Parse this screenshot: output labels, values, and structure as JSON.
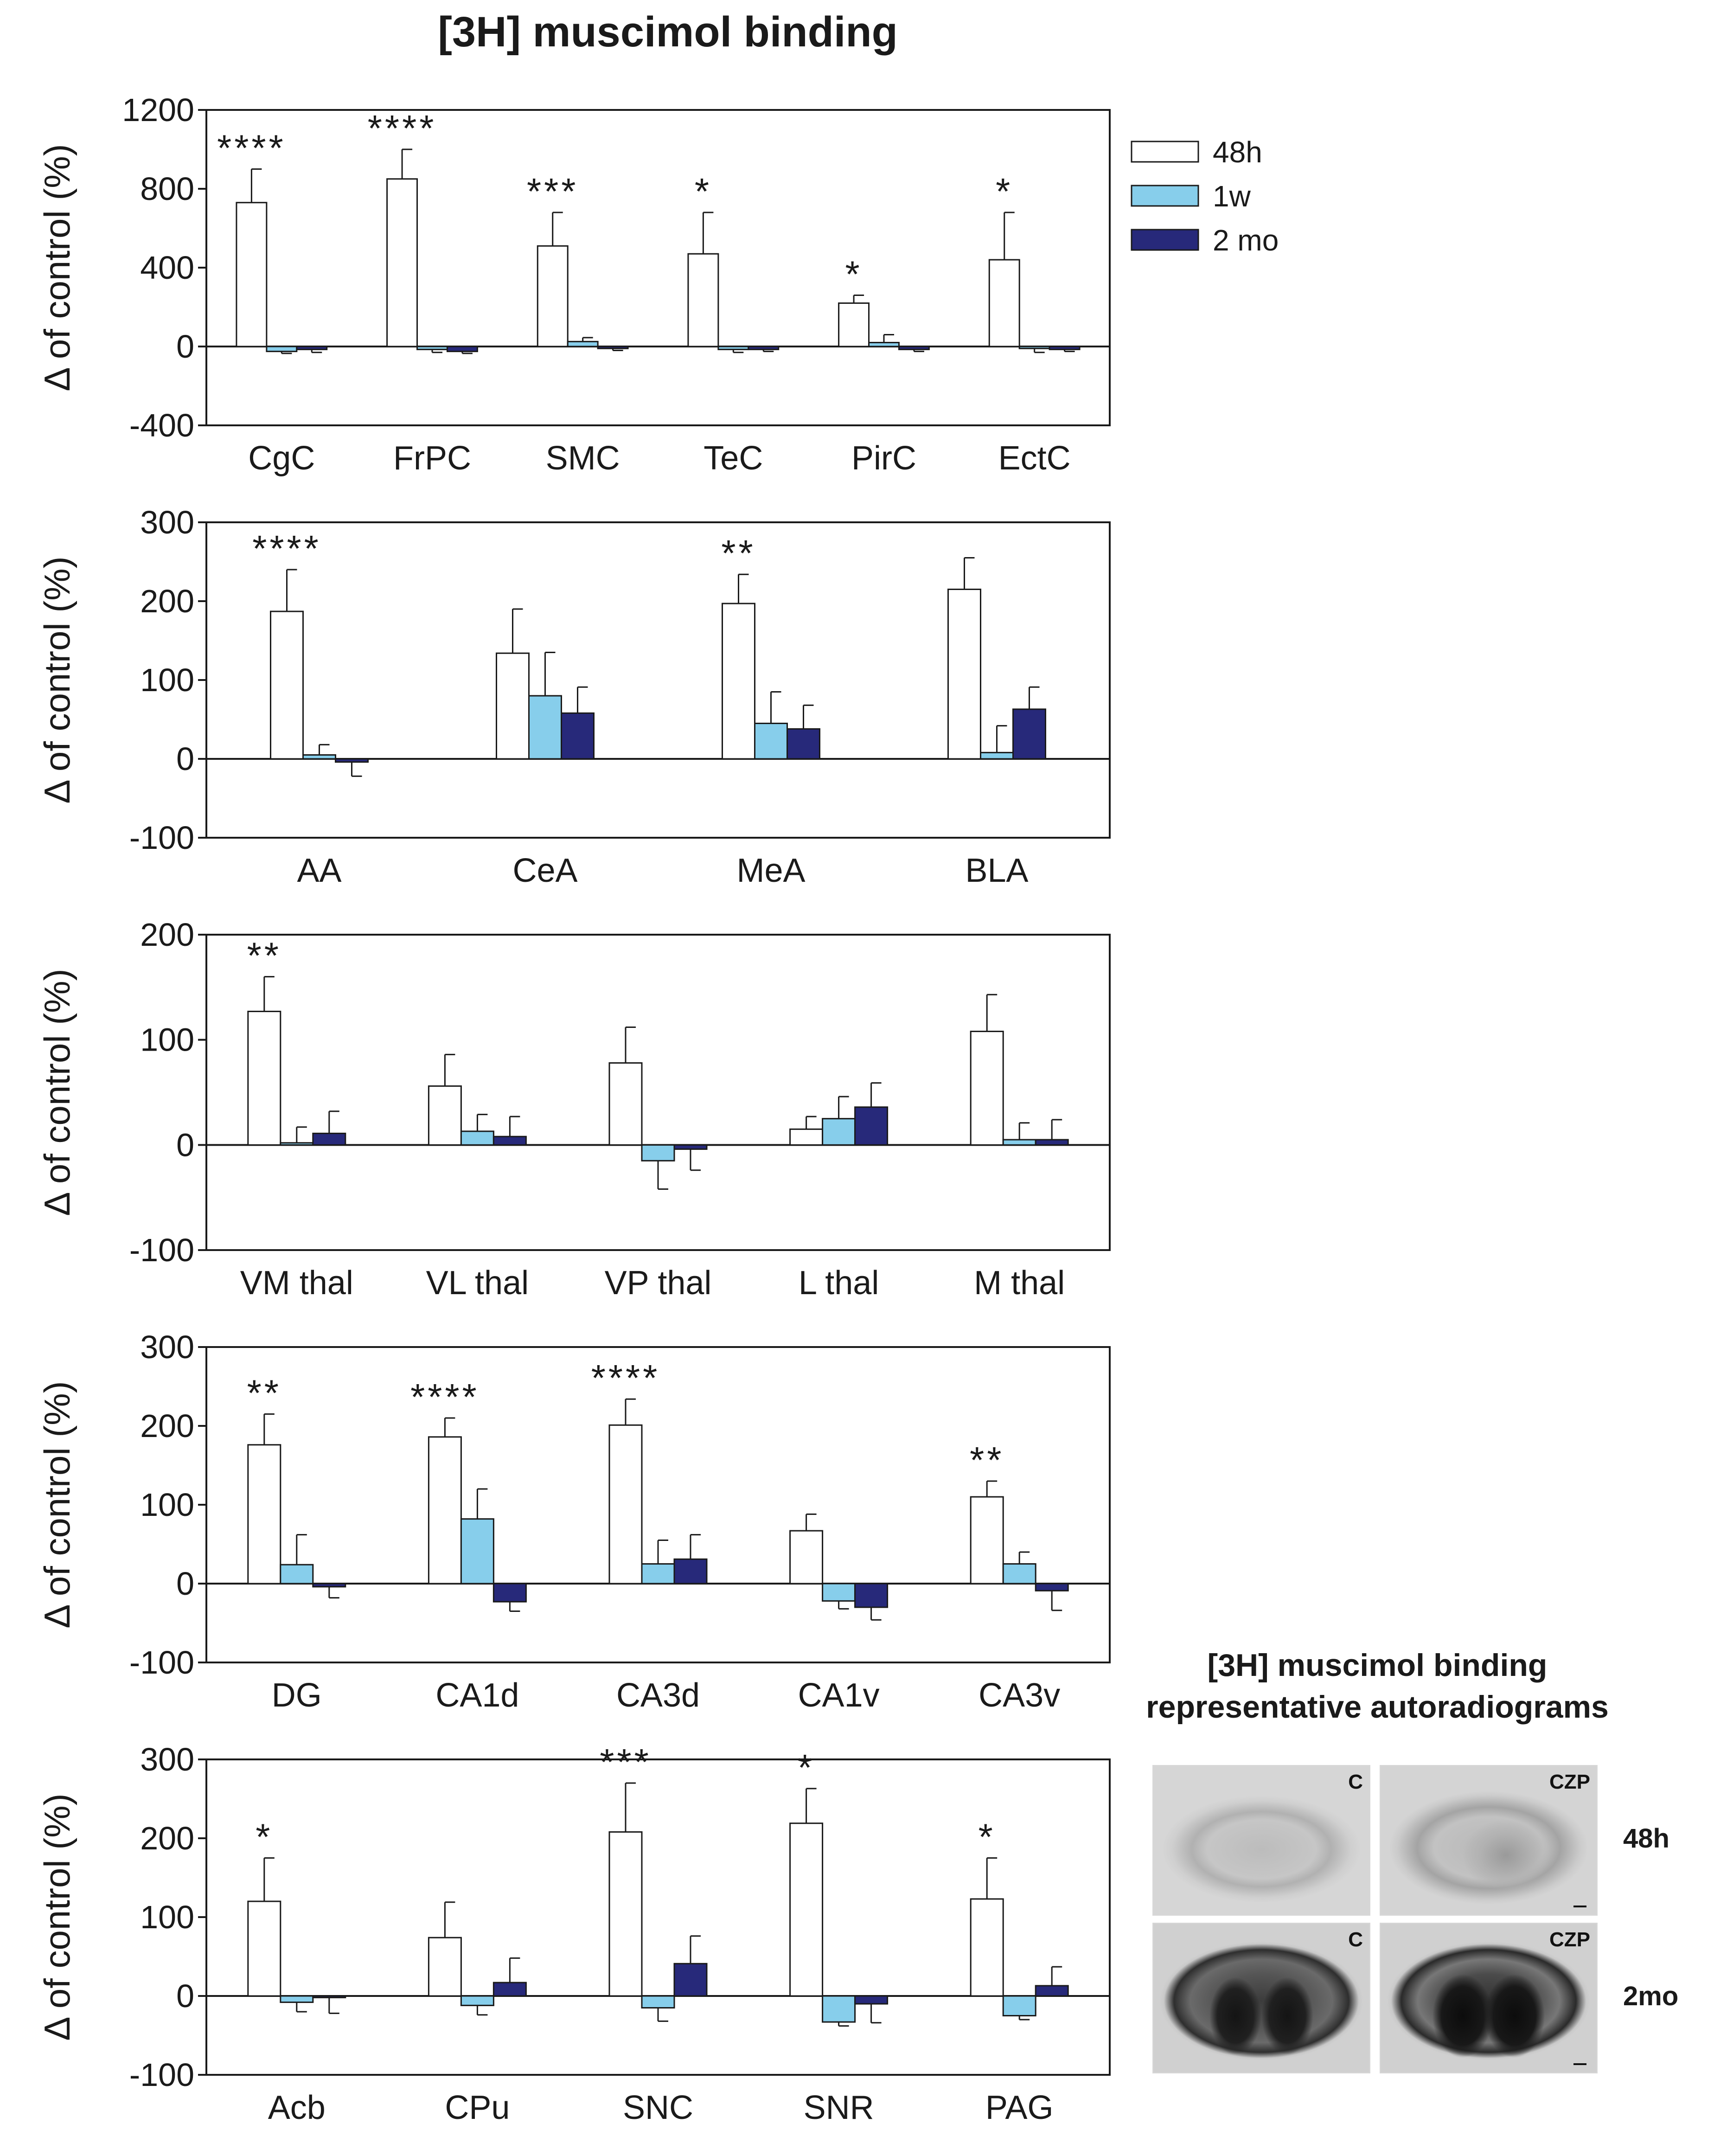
{
  "title": "[3H] muscimol binding",
  "ylabel": "Δ of control (%)",
  "legend": [
    {
      "label": "48h",
      "color": "#ffffff"
    },
    {
      "label": "1w",
      "color": "#87ceeb"
    },
    {
      "label": "2 mo",
      "color": "#27297a"
    }
  ],
  "colors": {
    "h48": "#ffffff",
    "w1": "#87ceeb",
    "mo2": "#27297a",
    "axis": "#1a1a1a"
  },
  "chart_data": [
    {
      "type": "bar",
      "ylim": [
        -400,
        1200
      ],
      "yticks": [
        -400,
        0,
        400,
        800,
        1200
      ],
      "categories": [
        "CgC",
        "FrPC",
        "SMC",
        "TeC",
        "PirC",
        "EctC"
      ],
      "series": [
        {
          "name": "48h",
          "values": [
            730,
            850,
            510,
            470,
            220,
            440
          ],
          "errors": [
            170,
            150,
            170,
            210,
            40,
            240
          ]
        },
        {
          "name": "1w",
          "values": [
            -25,
            -15,
            25,
            -15,
            20,
            -10
          ],
          "errors": [
            10,
            15,
            20,
            15,
            40,
            20
          ]
        },
        {
          "name": "2 mo",
          "values": [
            -15,
            -25,
            -10,
            -15,
            -15,
            -15
          ],
          "errors": [
            15,
            10,
            10,
            10,
            10,
            10
          ]
        }
      ],
      "annotations": [
        "****",
        "****",
        "***",
        "*",
        "*",
        "*"
      ]
    },
    {
      "type": "bar",
      "ylim": [
        -100,
        300
      ],
      "yticks": [
        -100,
        0,
        100,
        200,
        300
      ],
      "categories": [
        "AA",
        "CeA",
        "MeA",
        "BLA"
      ],
      "series": [
        {
          "name": "48h",
          "values": [
            187,
            134,
            197,
            215
          ],
          "errors": [
            53,
            56,
            37,
            40
          ]
        },
        {
          "name": "1w",
          "values": [
            5,
            80,
            45,
            8
          ],
          "errors": [
            13,
            55,
            40,
            34
          ]
        },
        {
          "name": "2 mo",
          "values": [
            -4,
            58,
            38,
            63
          ],
          "errors": [
            18,
            33,
            30,
            28
          ]
        }
      ],
      "annotations": [
        "****",
        "",
        "**",
        ""
      ]
    },
    {
      "type": "bar",
      "ylim": [
        -100,
        200
      ],
      "yticks": [
        -100,
        0,
        100,
        200
      ],
      "categories": [
        "VM thal",
        "VL thal",
        "VP thal",
        "L thal",
        "M thal"
      ],
      "series": [
        {
          "name": "48h",
          "values": [
            127,
            56,
            78,
            15,
            108
          ],
          "errors": [
            33,
            30,
            34,
            12,
            35
          ]
        },
        {
          "name": "1w",
          "values": [
            2,
            13,
            -15,
            25,
            5
          ],
          "errors": [
            15,
            16,
            27,
            21,
            16
          ]
        },
        {
          "name": "2 mo",
          "values": [
            11,
            8,
            -4,
            36,
            5
          ],
          "errors": [
            21,
            19,
            20,
            23,
            19
          ]
        }
      ],
      "annotations": [
        "**",
        "",
        "",
        "",
        ""
      ]
    },
    {
      "type": "bar",
      "ylim": [
        -100,
        300
      ],
      "yticks": [
        -100,
        0,
        100,
        200,
        300
      ],
      "categories": [
        "DG",
        "CA1d",
        "CA3d",
        "CA1v",
        "CA3v"
      ],
      "series": [
        {
          "name": "48h",
          "values": [
            176,
            186,
            201,
            67,
            110
          ],
          "errors": [
            39,
            24,
            33,
            21,
            20
          ]
        },
        {
          "name": "1w",
          "values": [
            24,
            82,
            25,
            -22,
            25
          ],
          "errors": [
            38,
            38,
            30,
            10,
            15
          ]
        },
        {
          "name": "2 mo",
          "values": [
            -4,
            -23,
            31,
            -30,
            -9
          ],
          "errors": [
            14,
            12,
            31,
            16,
            25
          ]
        }
      ],
      "annotations": [
        "**",
        "****",
        "****",
        "",
        "**"
      ]
    },
    {
      "type": "bar",
      "ylim": [
        -100,
        300
      ],
      "yticks": [
        -100,
        0,
        100,
        200,
        300
      ],
      "categories": [
        "Acb",
        "CPu",
        "SNC",
        "SNR",
        "PAG"
      ],
      "series": [
        {
          "name": "48h",
          "values": [
            120,
            74,
            208,
            219,
            123
          ],
          "errors": [
            55,
            45,
            62,
            44,
            52
          ]
        },
        {
          "name": "1w",
          "values": [
            -8,
            -12,
            -15,
            -33,
            -25
          ],
          "errors": [
            12,
            12,
            17,
            5,
            5
          ]
        },
        {
          "name": "2 mo",
          "values": [
            -2,
            17,
            41,
            -10,
            13
          ],
          "errors": [
            20,
            31,
            35,
            24,
            24
          ]
        }
      ],
      "annotations": [
        "*",
        "",
        "***",
        "*",
        "*"
      ]
    }
  ],
  "photos": {
    "heading_line1": "[3H] muscimol binding",
    "heading_line2": "representative autoradiograms",
    "label_control": "C",
    "label_treated": "CZP",
    "row1": "48h",
    "row2": "2mo"
  }
}
